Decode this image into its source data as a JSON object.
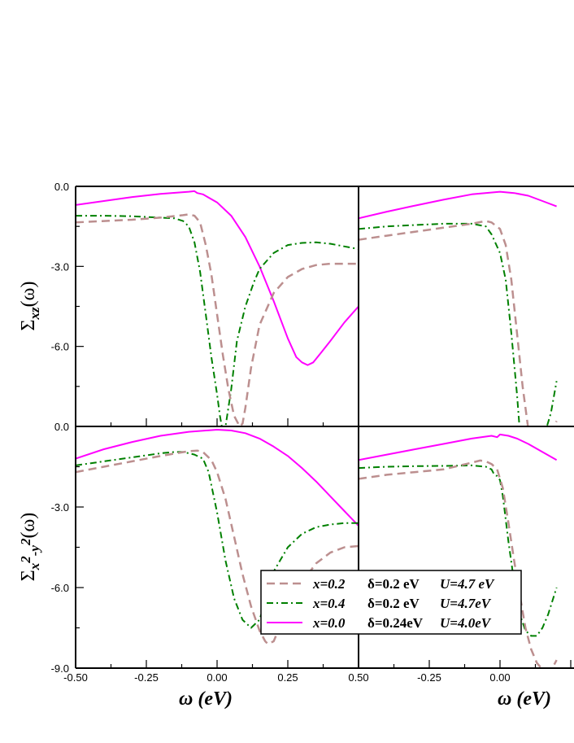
{
  "chart_data": {
    "type": "line",
    "xlabel": "ω (eV)",
    "ylabel_top": {
      "base": "Σ",
      "sub": "xz",
      "suffix": "(ω)"
    },
    "ylabel_bottom": {
      "base": "Σ",
      "sub_a": "x",
      "sup_a": "2",
      "sub_b": "-y",
      "sup_b": "2",
      "suffix": "(ω)"
    },
    "x_ticks": [
      "-0.50",
      "-0.25",
      "0.00",
      "0.25",
      "0.50"
    ],
    "y_ticks_top": [
      "0.0",
      "-3.0",
      "-6.0"
    ],
    "y_ticks_bottom": [
      "0.0",
      "-3.0",
      "-6.0",
      "-9.0"
    ],
    "xlim": [
      -0.5,
      0.5
    ],
    "ylim": [
      -9,
      0
    ],
    "grid": false,
    "legend": {
      "placement": "bottom-center",
      "entries": [
        {
          "series": "x=0.2",
          "delta": "δ=0.2 eV",
          "u": "U=4.7 eV"
        },
        {
          "series": "x=0.4",
          "delta": "δ=0.2 eV",
          "u": "U=4.7eV"
        },
        {
          "series": "x=0.0",
          "delta": "δ=0.24eV",
          "u": "U=4.0eV"
        }
      ]
    },
    "series_styles": [
      {
        "name": "x=0.2",
        "color": "#bc8f8f",
        "dash": "10,6"
      },
      {
        "name": "x=0.4",
        "color": "#008000",
        "dash": "8,4,2,4"
      },
      {
        "name": "x=0.0",
        "color": "#ff00ff",
        "dash": ""
      }
    ],
    "panels": [
      {
        "id": "top-left",
        "series": [
          {
            "name": "x=0.0",
            "x": [
              -0.5,
              -0.4,
              -0.3,
              -0.2,
              -0.1,
              -0.08,
              -0.07,
              -0.05,
              0.0,
              0.05,
              0.1,
              0.15,
              0.2,
              0.25,
              0.28,
              0.3,
              0.32,
              0.34,
              0.37,
              0.4,
              0.45,
              0.5
            ],
            "y": [
              -0.7,
              -0.55,
              -0.4,
              -0.28,
              -0.2,
              -0.18,
              -0.25,
              -0.3,
              -0.6,
              -1.1,
              -1.9,
              -3.0,
              -4.3,
              -5.7,
              -6.4,
              -6.6,
              -6.7,
              -6.6,
              -6.2,
              -5.8,
              -5.1,
              -4.5
            ]
          },
          {
            "name": "x=0.4",
            "x": [
              -0.5,
              -0.4,
              -0.3,
              -0.2,
              -0.15,
              -0.12,
              -0.1,
              -0.08,
              -0.06,
              -0.04,
              -0.02,
              0.0,
              0.01,
              0.02,
              0.03,
              0.05,
              0.07,
              0.1,
              0.13,
              0.15,
              0.2,
              0.25,
              0.3,
              0.35,
              0.4,
              0.45,
              0.5
            ],
            "y": [
              -1.1,
              -1.1,
              -1.12,
              -1.17,
              -1.2,
              -1.3,
              -1.5,
              -2.1,
              -3.2,
              -4.8,
              -6.4,
              -7.8,
              -8.6,
              -9.2,
              -9.0,
              -7.6,
              -5.8,
              -4.5,
              -3.6,
              -3.1,
              -2.5,
              -2.2,
              -2.12,
              -2.1,
              -2.15,
              -2.25,
              -2.35
            ]
          },
          {
            "name": "x=0.2",
            "x": [
              -0.5,
              -0.4,
              -0.3,
              -0.2,
              -0.12,
              -0.1,
              -0.08,
              -0.06,
              -0.04,
              -0.02,
              0.0,
              0.02,
              0.04,
              0.06,
              0.08,
              0.09,
              0.1,
              0.12,
              0.15,
              0.2,
              0.25,
              0.3,
              0.35,
              0.4,
              0.5
            ],
            "y": [
              -1.35,
              -1.3,
              -1.25,
              -1.17,
              -1.08,
              -1.05,
              -1.1,
              -1.35,
              -2.2,
              -3.3,
              -4.8,
              -6.3,
              -7.6,
              -8.6,
              -9.0,
              -8.9,
              -8.3,
              -6.8,
              -5.2,
              -4.0,
              -3.4,
              -3.1,
              -2.95,
              -2.9,
              -2.9
            ]
          }
        ]
      },
      {
        "id": "top-right",
        "series": [
          {
            "name": "x=0.0",
            "x": [
              -0.5,
              -0.4,
              -0.3,
              -0.2,
              -0.1,
              0.0,
              0.05,
              0.1,
              0.15,
              0.2
            ],
            "y": [
              -1.2,
              -0.95,
              -0.72,
              -0.5,
              -0.3,
              -0.2,
              -0.25,
              -0.35,
              -0.55,
              -0.75
            ]
          },
          {
            "name": "x=0.4",
            "x": [
              -0.5,
              -0.4,
              -0.3,
              -0.2,
              -0.1,
              -0.05,
              -0.03,
              0.0,
              0.02,
              0.04,
              0.06,
              0.07,
              0.08,
              0.1,
              0.12,
              0.14,
              0.16,
              0.18,
              0.2
            ],
            "y": [
              -1.6,
              -1.5,
              -1.45,
              -1.4,
              -1.4,
              -1.5,
              -1.8,
              -2.5,
              -3.5,
              -5.5,
              -7.8,
              -9.2,
              -9.5,
              -9.6,
              -9.6,
              -9.4,
              -9.2,
              -8.5,
              -7.3
            ]
          },
          {
            "name": "x=0.2",
            "x": [
              -0.5,
              -0.4,
              -0.3,
              -0.2,
              -0.1,
              -0.05,
              -0.03,
              0.0,
              0.02,
              0.04,
              0.06,
              0.08,
              0.1,
              0.12,
              0.14,
              0.16,
              0.18,
              0.2
            ],
            "y": [
              -2.0,
              -1.85,
              -1.7,
              -1.55,
              -1.4,
              -1.3,
              -1.35,
              -1.6,
              -2.2,
              -3.5,
              -5.5,
              -7.5,
              -9.1,
              -9.8,
              -9.8,
              -9.5,
              -9.2,
              -8.8
            ]
          }
        ]
      },
      {
        "id": "bottom-left",
        "series": [
          {
            "name": "x=0.0",
            "x": [
              -0.5,
              -0.4,
              -0.3,
              -0.2,
              -0.1,
              0.0,
              0.05,
              0.1,
              0.15,
              0.2,
              0.25,
              0.3,
              0.35,
              0.4,
              0.45,
              0.5
            ],
            "y": [
              -1.2,
              -0.85,
              -0.58,
              -0.35,
              -0.2,
              -0.12,
              -0.15,
              -0.25,
              -0.45,
              -0.75,
              -1.1,
              -1.55,
              -2.05,
              -2.6,
              -3.15,
              -3.7
            ]
          },
          {
            "name": "x=0.4",
            "x": [
              -0.5,
              -0.4,
              -0.3,
              -0.2,
              -0.15,
              -0.12,
              -0.08,
              -0.05,
              -0.03,
              0.0,
              0.03,
              0.06,
              0.09,
              0.12,
              0.15,
              0.18,
              0.2,
              0.25,
              0.3,
              0.35,
              0.4,
              0.45,
              0.5
            ],
            "y": [
              -1.45,
              -1.3,
              -1.15,
              -1.0,
              -0.95,
              -0.95,
              -1.05,
              -1.2,
              -1.7,
              -3.2,
              -5.0,
              -6.4,
              -7.2,
              -7.5,
              -7.2,
              -6.2,
              -5.4,
              -4.5,
              -4.0,
              -3.75,
              -3.65,
              -3.6,
              -3.6
            ]
          },
          {
            "name": "x=0.2",
            "x": [
              -0.5,
              -0.4,
              -0.3,
              -0.2,
              -0.1,
              -0.07,
              -0.05,
              -0.02,
              0.0,
              0.03,
              0.06,
              0.09,
              0.12,
              0.15,
              0.17,
              0.18,
              0.2,
              0.22,
              0.25,
              0.3,
              0.35,
              0.4,
              0.45,
              0.5
            ],
            "y": [
              -1.7,
              -1.5,
              -1.3,
              -1.1,
              -0.92,
              -0.9,
              -0.95,
              -1.25,
              -1.7,
              -2.7,
              -4.1,
              -5.5,
              -6.7,
              -7.6,
              -8.0,
              -8.1,
              -8.0,
              -7.5,
              -6.8,
              -5.8,
              -5.1,
              -4.7,
              -4.5,
              -4.45
            ]
          }
        ]
      },
      {
        "id": "bottom-right",
        "series": [
          {
            "name": "x=0.0",
            "x": [
              -0.5,
              -0.4,
              -0.3,
              -0.2,
              -0.1,
              -0.03,
              -0.01,
              0.0,
              0.03,
              0.06,
              0.1,
              0.15,
              0.2
            ],
            "y": [
              -1.25,
              -1.05,
              -0.85,
              -0.65,
              -0.45,
              -0.35,
              -0.4,
              -0.3,
              -0.35,
              -0.45,
              -0.65,
              -0.95,
              -1.25
            ]
          },
          {
            "name": "x=0.4",
            "x": [
              -0.5,
              -0.4,
              -0.3,
              -0.2,
              -0.1,
              -0.05,
              -0.03,
              -0.02,
              -0.01,
              0.0,
              0.01,
              0.03,
              0.05,
              0.07,
              0.09,
              0.11,
              0.13,
              0.15,
              0.17,
              0.2
            ],
            "y": [
              -1.55,
              -1.5,
              -1.48,
              -1.47,
              -1.45,
              -1.5,
              -1.6,
              -1.8,
              -1.85,
              -2.0,
              -2.6,
              -4.3,
              -5.8,
              -7.0,
              -7.6,
              -7.8,
              -7.8,
              -7.5,
              -7.0,
              -6.0
            ]
          },
          {
            "name": "x=0.2",
            "x": [
              -0.5,
              -0.4,
              -0.3,
              -0.2,
              -0.1,
              -0.07,
              -0.05,
              -0.03,
              -0.01,
              0.01,
              0.03,
              0.05,
              0.07,
              0.09,
              0.11,
              0.13,
              0.15,
              0.17,
              0.19,
              0.2
            ],
            "y": [
              -1.95,
              -1.8,
              -1.7,
              -1.6,
              -1.35,
              -1.27,
              -1.3,
              -1.4,
              -1.6,
              -2.3,
              -3.6,
              -5.0,
              -6.3,
              -7.5,
              -8.3,
              -8.8,
              -9.05,
              -9.1,
              -8.9,
              -8.7
            ]
          }
        ]
      }
    ]
  }
}
